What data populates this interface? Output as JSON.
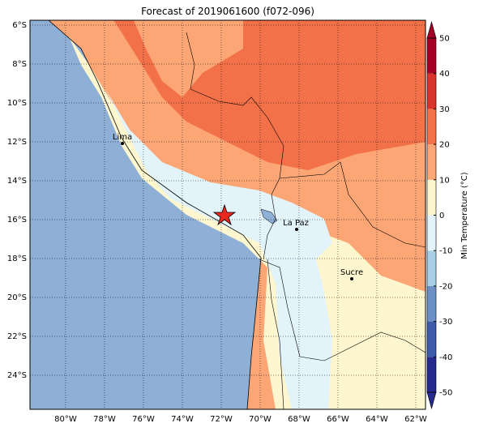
{
  "title": "Forecast of 2019061600 (f072-096)",
  "map": {
    "xlim": [
      -81.83,
      -61.5
    ],
    "ylim": [
      -25.75,
      -5.75
    ],
    "xticks": [
      {
        "value": -80,
        "label": "80°W"
      },
      {
        "value": -78,
        "label": "78°W"
      },
      {
        "value": -76,
        "label": "76°W"
      },
      {
        "value": -74,
        "label": "74°W"
      },
      {
        "value": -72,
        "label": "72°W"
      },
      {
        "value": -70,
        "label": "70°W"
      },
      {
        "value": -68,
        "label": "68°W"
      },
      {
        "value": -66,
        "label": "66°W"
      },
      {
        "value": -64,
        "label": "64°W"
      },
      {
        "value": -62,
        "label": "62°W"
      }
    ],
    "yticks": [
      {
        "value": -6,
        "label": "6°S"
      },
      {
        "value": -8,
        "label": "8°S"
      },
      {
        "value": -10,
        "label": "10°S"
      },
      {
        "value": -12,
        "label": "12°S"
      },
      {
        "value": -14,
        "label": "14°S"
      },
      {
        "value": -16,
        "label": "16°S"
      },
      {
        "value": -18,
        "label": "18°S"
      },
      {
        "value": -20,
        "label": "20°S"
      },
      {
        "value": -22,
        "label": "22°S"
      },
      {
        "value": -24,
        "label": "24°S"
      }
    ],
    "places": [
      "Lima",
      "La Paz",
      "Sucre"
    ]
  },
  "colorbar": {
    "label": "Min Temperature (°C)",
    "lim": [
      -50,
      50
    ],
    "ticks": [
      -50,
      -40,
      -30,
      -20,
      -10,
      0,
      10,
      20,
      30,
      40,
      50
    ],
    "colors": [
      "#262a8c",
      "#3d5ba6",
      "#6d91c6",
      "#a9cfe4",
      "#e2f3f9",
      "#fdf6cf",
      "#fca676",
      "#f27148",
      "#d8342b",
      "#a50026"
    ]
  }
}
